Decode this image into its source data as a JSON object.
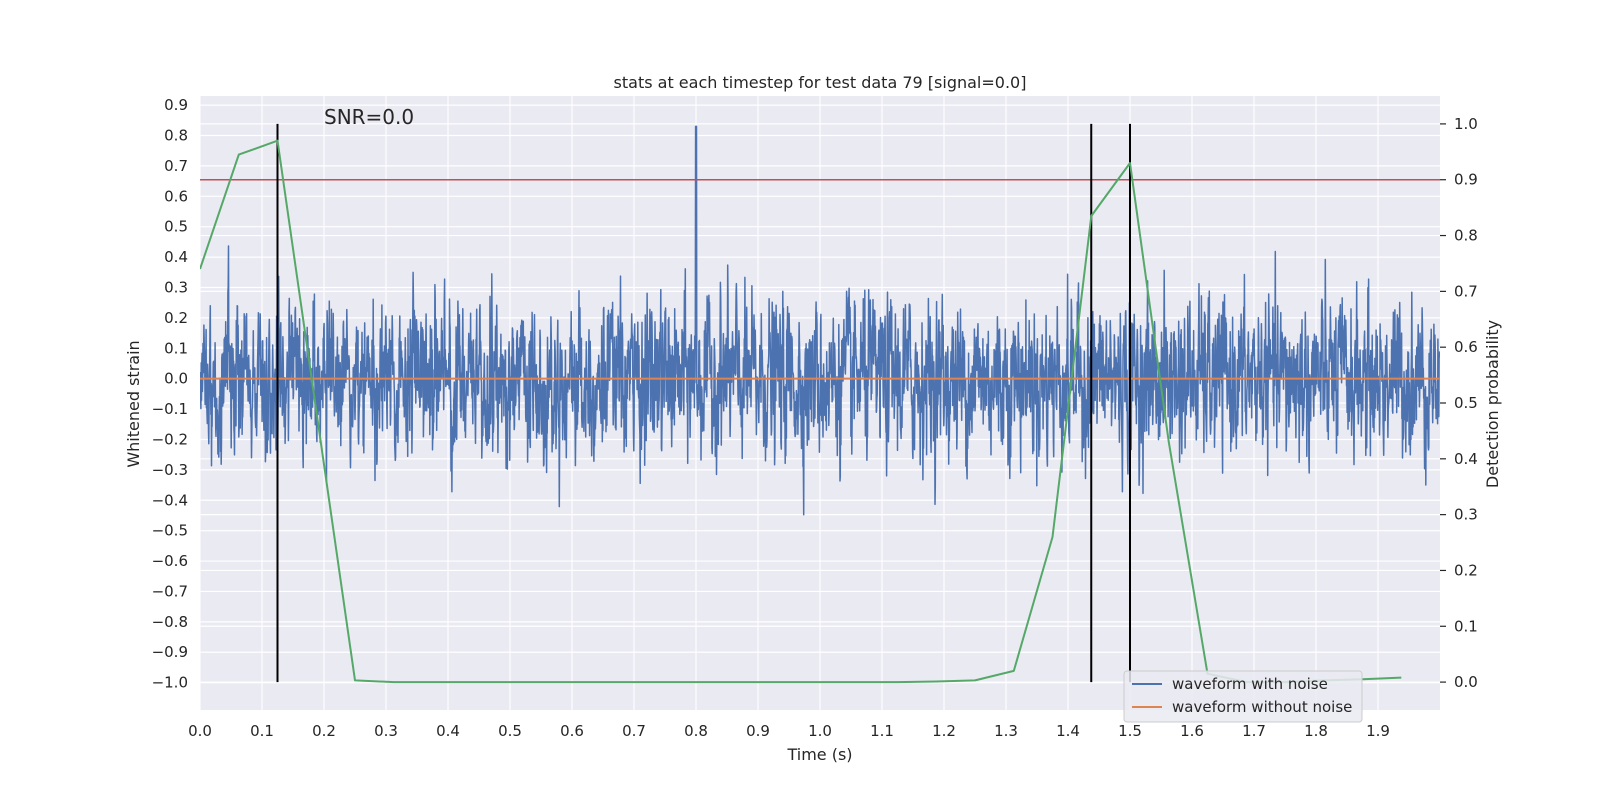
{
  "chart_data": {
    "type": "line",
    "title": "stats at each timestep for test data 79 [signal=0.0]",
    "xlabel": "Time (s)",
    "ylabel": "Whitened strain",
    "y2label": "Detection probability",
    "annotation": "SNR=0.0",
    "xlim": [
      0.0,
      2.0
    ],
    "ylim": [
      -1.09,
      0.93
    ],
    "y2lim": [
      -0.05,
      1.05
    ],
    "xticks": [
      "0.0",
      "0.1",
      "0.2",
      "0.3",
      "0.4",
      "0.5",
      "0.6",
      "0.7",
      "0.8",
      "0.9",
      "1.0",
      "1.1",
      "1.2",
      "1.3",
      "1.4",
      "1.5",
      "1.6",
      "1.7",
      "1.8",
      "1.9"
    ],
    "yticks": [
      "0.9",
      "0.8",
      "0.7",
      "0.6",
      "0.5",
      "0.4",
      "0.3",
      "0.2",
      "0.1",
      "0.0",
      "−0.1",
      "−0.2",
      "−0.3",
      "−0.4",
      "−0.5",
      "−0.6",
      "−0.7",
      "−0.8",
      "−0.9",
      "−1.0"
    ],
    "y2ticks": [
      "1.0",
      "0.9",
      "0.8",
      "0.7",
      "0.6",
      "0.5",
      "0.4",
      "0.3",
      "0.2",
      "0.1",
      "0.0"
    ],
    "grid": true,
    "legend": {
      "placement": "lower-right"
    },
    "series": [
      {
        "name": "waveform with noise",
        "color": "#4c72b0",
        "kind": "noise",
        "points": 4096,
        "amplitude_std": 0.2,
        "peak": [
          0.8,
          0.83
        ]
      },
      {
        "name": "waveform without noise",
        "color": "#dd8452",
        "y": 0.0
      }
    ],
    "probability_series": {
      "color": "#55a868",
      "x": [
        0.0,
        0.0625,
        0.125,
        0.25,
        0.3125,
        0.375,
        0.4375,
        0.5,
        0.5625,
        0.625,
        0.6875,
        0.75,
        0.8125,
        0.875,
        0.9375,
        1.0,
        1.0625,
        1.125,
        1.1875,
        1.25,
        1.3125,
        1.375,
        1.4375,
        1.5,
        1.5625,
        1.625,
        1.6875,
        1.75,
        1.8125,
        1.875,
        1.9375
      ],
      "y": [
        0.74,
        0.945,
        0.97,
        0.003,
        0.0,
        0.0,
        0.0,
        0.0,
        0.0,
        0.0,
        0.0,
        0.0,
        0.0,
        0.0,
        0.0,
        0.0,
        0.0,
        0.0,
        0.001,
        0.003,
        0.02,
        0.26,
        0.835,
        0.93,
        0.43,
        0.015,
        0.0,
        0.0,
        0.003,
        0.005,
        0.008
      ]
    },
    "threshold": {
      "y2": 0.9,
      "color": "#c44e52"
    },
    "detections_x": [
      0.125,
      1.4375,
      1.5
    ],
    "detection_color": "#000000"
  }
}
